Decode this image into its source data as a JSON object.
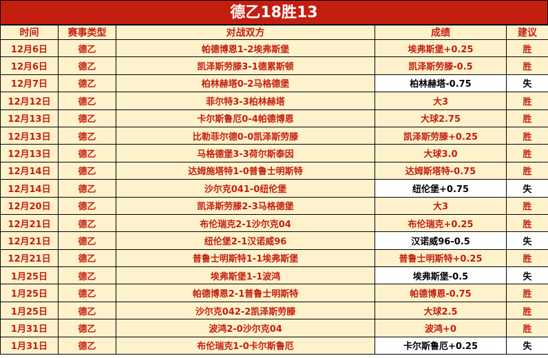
{
  "title": "德乙18胜13",
  "headers": [
    "时间",
    "赛事类型",
    "对战双方",
    "成绩",
    "建议"
  ],
  "colors": {
    "accent": "#c41e0e",
    "row_bg": "#fef2cc",
    "loss_bg": "#ffffff"
  },
  "rows": [
    {
      "date": "12月6日",
      "league": "德乙",
      "match": "帕德博恩1-2埃弗斯堡",
      "result": "埃弗斯堡+0.25",
      "advice": "胜"
    },
    {
      "date": "12月6日",
      "league": "德乙",
      "match": "凯泽斯劳滕3-1德累斯顿",
      "result": "凯泽斯劳滕-0.5",
      "advice": "胜"
    },
    {
      "date": "12月7日",
      "league": "德乙",
      "match": "柏林赫塔0-2马格德堡",
      "result": "柏林赫塔-0.75",
      "advice": "失"
    },
    {
      "date": "12月12日",
      "league": "德乙",
      "match": "菲尔特3-3柏林赫塔",
      "result": "大3",
      "advice": "胜"
    },
    {
      "date": "12月13日",
      "league": "德乙",
      "match": "卡尔斯鲁厄0-4帕德博恩",
      "result": "大球2.75",
      "advice": "胜"
    },
    {
      "date": "12月13日",
      "league": "德乙",
      "match": "比勒菲尔德0-0凯泽斯劳滕",
      "result": "凯泽斯劳滕+0.25",
      "advice": "胜"
    },
    {
      "date": "12月13日",
      "league": "德乙",
      "match": "马格德堡3-3荷尔斯泰因",
      "result": "大球3.0",
      "advice": "胜"
    },
    {
      "date": "12月14日",
      "league": "德乙",
      "match": "达姆施塔特1-0普鲁士明斯特",
      "result": "达姆斯塔特-0.75",
      "advice": "胜"
    },
    {
      "date": "12月14日",
      "league": "德乙",
      "match": "沙尔克041-0纽伦堡",
      "result": "纽伦堡+0.75",
      "advice": "失"
    },
    {
      "date": "12月20日",
      "league": "德乙",
      "match": "凯泽斯劳滕2-3马格德堡",
      "result": "大3",
      "advice": "胜"
    },
    {
      "date": "12月21日",
      "league": "德乙",
      "match": "布伦瑞克2-1沙尔克04",
      "result": "布伦瑞克+0.25",
      "advice": "胜"
    },
    {
      "date": "12月21日",
      "league": "德乙",
      "match": "纽伦堡2-1汉诺威96",
      "result": "汉诺威96-0.5",
      "advice": "失"
    },
    {
      "date": "12月21日",
      "league": "德乙",
      "match": "普鲁士明斯特1-1埃弗斯堡",
      "result": "普鲁士明斯特+0.25",
      "advice": "胜"
    },
    {
      "date": "1月25日",
      "league": "德乙",
      "match": "埃弗斯堡1-1波鸿",
      "result": "埃弗斯堡-0.5",
      "advice": "失"
    },
    {
      "date": "1月25日",
      "league": "德乙",
      "match": "帕德博恩2-1普鲁士明斯特",
      "result": "帕德博恩-0.75",
      "advice": "胜"
    },
    {
      "date": "1月25日",
      "league": "德乙",
      "match": "沙尔克042-2凯泽斯劳滕",
      "result": "大球2.5",
      "advice": "胜"
    },
    {
      "date": "1月31日",
      "league": "德乙",
      "match": "波鸿2-0沙尔克04",
      "result": "波鸿+0",
      "advice": "胜"
    },
    {
      "date": "1月31日",
      "league": "德乙",
      "match": "布伦瑞克1-0卡尔斯鲁厄",
      "result": "卡尔斯鲁厄+0.25",
      "advice": "失"
    }
  ]
}
